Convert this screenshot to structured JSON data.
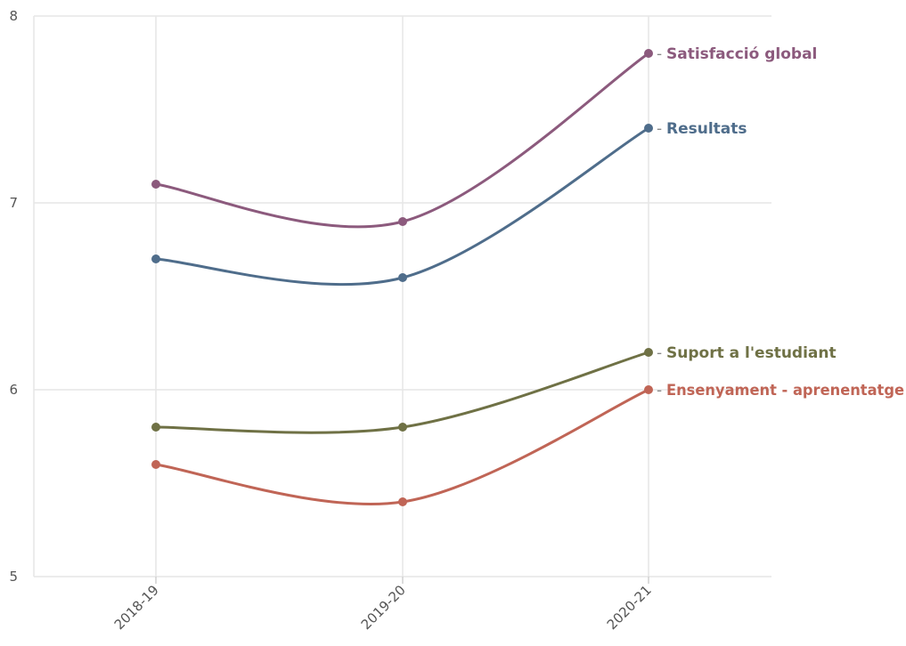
{
  "chart_data": {
    "type": "line",
    "title": "",
    "xlabel": "",
    "ylabel": "",
    "x": [
      "2018-19",
      "2019-20",
      "2020-21"
    ],
    "ylim": [
      5,
      8
    ],
    "yticks": [
      "5",
      "6",
      "7",
      "8"
    ],
    "grid": true,
    "legend": "inline-right",
    "series": [
      {
        "name": "Satisfacció global",
        "values": [
          7.1,
          6.9,
          7.8
        ],
        "color": "#8c5a7d"
      },
      {
        "name": "Resultats",
        "values": [
          6.7,
          6.6,
          7.4
        ],
        "color": "#4f6d8b"
      },
      {
        "name": "Suport a l'estudiant",
        "values": [
          5.8,
          5.8,
          6.2
        ],
        "color": "#6f7145"
      },
      {
        "name": "Ensenyament - aprenentatge",
        "values": [
          5.6,
          5.4,
          6.0
        ],
        "color": "#c06556"
      }
    ]
  }
}
